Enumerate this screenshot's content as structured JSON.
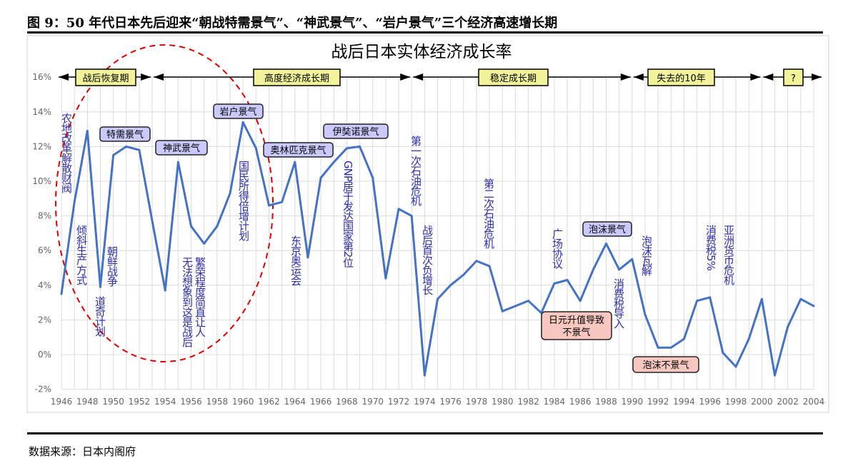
{
  "figure_title": "图 9：50 年代日本先后迎来“朝战特需景气”、“神武景气”、“岩户景气”三个经济高速增长期",
  "source": "数据来源：日本内阁府",
  "chart_data": {
    "type": "line",
    "title": "战后日本实体经济成长率",
    "xlabel": "",
    "ylabel": "",
    "ylim": [
      -2,
      16
    ],
    "yticks": [
      "-2%",
      "0%",
      "2%",
      "4%",
      "6%",
      "8%",
      "10%",
      "12%",
      "14%",
      "16%"
    ],
    "xticks": [
      "1946",
      "1948",
      "1950",
      "1952",
      "1954",
      "1956",
      "1958",
      "1960",
      "1962",
      "1964",
      "1966",
      "1968",
      "1970",
      "1972",
      "1974",
      "1976",
      "1978",
      "1980",
      "1982",
      "1984",
      "1986",
      "1988",
      "1990",
      "1992",
      "1994",
      "1996",
      "1998",
      "2000",
      "2002",
      "2004"
    ],
    "grid": true,
    "line_color": "#4472c4",
    "x": [
      1946,
      1947,
      1948,
      1949,
      1950,
      1951,
      1952,
      1953,
      1954,
      1955,
      1956,
      1957,
      1958,
      1959,
      1960,
      1961,
      1962,
      1963,
      1964,
      1965,
      1966,
      1967,
      1968,
      1969,
      1970,
      1971,
      1972,
      1973,
      1974,
      1975,
      1976,
      1977,
      1978,
      1979,
      1980,
      1981,
      1982,
      1983,
      1984,
      1985,
      1986,
      1987,
      1988,
      1989,
      1990,
      1991,
      1992,
      1993,
      1994,
      1995,
      1996,
      1997,
      1998,
      1999,
      2000,
      2001,
      2002,
      2003,
      2004
    ],
    "values": [
      3.5,
      8.8,
      12.9,
      3.9,
      11.5,
      12.0,
      11.8,
      7.7,
      3.7,
      11.1,
      7.4,
      6.4,
      7.4,
      9.3,
      13.4,
      11.9,
      8.6,
      8.8,
      11.1,
      5.6,
      10.2,
      11.1,
      11.9,
      12.0,
      10.2,
      4.4,
      8.4,
      8.0,
      -1.2,
      3.2,
      4.0,
      4.6,
      5.4,
      5.1,
      2.5,
      2.8,
      3.1,
      2.4,
      4.1,
      4.3,
      3.1,
      4.9,
      6.4,
      4.9,
      5.5,
      2.3,
      0.4,
      0.4,
      0.9,
      3.1,
      3.3,
      0.1,
      -0.7,
      0.9,
      3.2,
      -1.2,
      1.6,
      3.2,
      2.8
    ],
    "periods": [
      {
        "label": "战后恢复期",
        "from": 1946,
        "to": 1953
      },
      {
        "label": "高度经济成长期",
        "from": 1953,
        "to": 1973
      },
      {
        "label": "稳定成长期",
        "from": 1973,
        "to": 1990
      },
      {
        "label": "失去的10年",
        "from": 1990,
        "to": 2000
      },
      {
        "label": "?",
        "from": 2000,
        "to": 2005
      }
    ],
    "booms": [
      "特需景气",
      "神武景气",
      "岩户景气",
      "奥林匹克景气",
      "伊奘诺景气",
      "泡沫景气"
    ],
    "recessions": [
      [
        "日元升值导致",
        "不景气"
      ],
      [
        "泡沫不景气"
      ]
    ],
    "events": [
      "农地改革解散财阀",
      "倾斜生产方式",
      "道奇计划",
      "朝鲜战争",
      "繁荣程度简直让人",
      "无法想象到这是战后",
      "国民所得倍增计划",
      "东京奥运会",
      "GNP居于发达国家第2位",
      "第一次石油危机",
      "战后首次负增长",
      "第二次石油危机",
      "广场协议",
      "消费税导入",
      "泡沫瓦解",
      "消费税5%",
      "亚洲货币危机"
    ],
    "colors": {
      "period_box": "#f2f29a",
      "boom_box": "#c9c9fb",
      "recession_box": "#f8c8c0",
      "event_text": "#2e2ea8",
      "ellipse": "#e00000"
    }
  }
}
